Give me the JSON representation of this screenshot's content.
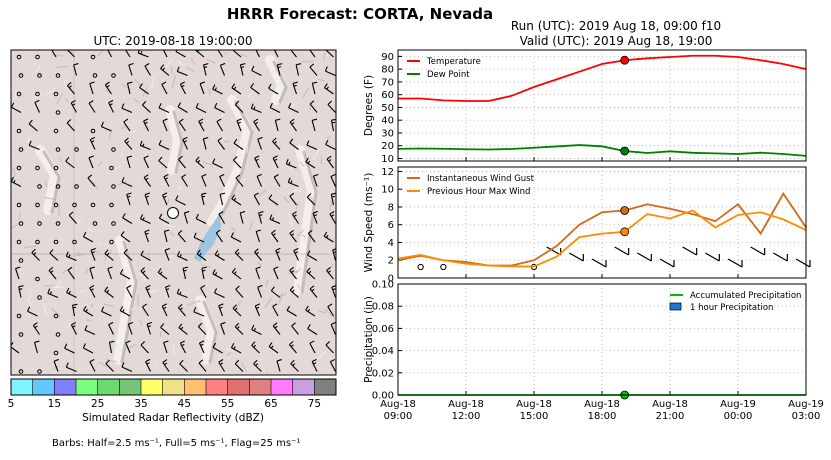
{
  "figure": {
    "suptitle": "HRRR Forecast: CORTA, Nevada",
    "run_title": "Run (UTC): 2019 Aug 18, 09:00 f10",
    "valid_title": "Valid (UTC): 2019 Aug 18, 19:00",
    "barb_note": "Barbs: Half=2.5 ms⁻¹, Full=5 ms⁻¹, Flag=25 ms⁻¹"
  },
  "map": {
    "title": "UTC: 2019-08-18 19:00:00",
    "colorbar_label": "Simulated Radar Reflectivity (dBZ)",
    "colorbar_ticks": [
      "5",
      "15",
      "25",
      "35",
      "45",
      "55",
      "65",
      "75"
    ],
    "colorbar_colors": [
      "#7ff5ff",
      "#62c8ff",
      "#8080ff",
      "#7dff7d",
      "#6fd86f",
      "#76c476",
      "#ffff66",
      "#f0e08a",
      "#ffc070",
      "#ff8080",
      "#e07070",
      "#e08080",
      "#ff7aff",
      "#c8a0e0",
      "#808080"
    ],
    "station_marker": "station-icon"
  },
  "chart_data": [
    {
      "type": "line",
      "ylabel": "Degrees (F)",
      "ylim": [
        8,
        95
      ],
      "yticks": [
        "10",
        "20",
        "30",
        "40",
        "50",
        "60",
        "70",
        "80",
        "90"
      ],
      "grid": true,
      "legend": "top-left",
      "x": [
        9,
        10,
        11,
        12,
        13,
        14,
        15,
        16,
        17,
        18,
        19,
        20,
        21,
        22,
        23,
        24,
        25,
        26,
        27
      ],
      "series": [
        {
          "name": "Temperature",
          "color": "#ff0000",
          "values": [
            57,
            57,
            55.5,
            55,
            55,
            59,
            66,
            72,
            78,
            84,
            87,
            88.5,
            89.5,
            90.5,
            90.5,
            89.5,
            87,
            84,
            80
          ]
        },
        {
          "name": "Dew Point",
          "color": "#008000",
          "values": [
            17.5,
            17.8,
            17.6,
            17.2,
            17.0,
            17.4,
            18.4,
            19.4,
            20.5,
            19.5,
            15.8,
            14.3,
            15.6,
            14.4,
            14.0,
            13.5,
            14.5,
            13.5,
            12.0
          ]
        }
      ],
      "current_x": 19
    },
    {
      "type": "line",
      "ylabel": "Wind Speed (ms⁻¹)",
      "ylim": [
        0,
        12.5
      ],
      "yticks": [
        "0",
        "2",
        "4",
        "6",
        "8",
        "10",
        "12"
      ],
      "grid": true,
      "legend": "top-left",
      "x": [
        9,
        10,
        11,
        12,
        13,
        14,
        15,
        16,
        17,
        18,
        19,
        20,
        21,
        22,
        23,
        24,
        25,
        26,
        27
      ],
      "series": [
        {
          "name": "Instantaneous Wind Gust",
          "color": "#d2691e",
          "values": [
            2.0,
            2.5,
            2.0,
            1.8,
            1.4,
            1.4,
            2.0,
            3.6,
            6.0,
            7.4,
            7.6,
            8.3,
            7.8,
            7.2,
            6.4,
            8.3,
            5.0,
            9.5,
            5.7
          ]
        },
        {
          "name": "Previous Hour Max Wind",
          "color": "#ff8c00",
          "values": [
            2.2,
            2.6,
            2.0,
            1.6,
            1.4,
            1.3,
            1.3,
            2.4,
            4.6,
            5.0,
            5.2,
            7.2,
            6.7,
            7.6,
            5.7,
            7.1,
            7.4,
            6.6,
            5.4
          ]
        }
      ],
      "current_x": 19
    },
    {
      "type": "line",
      "ylabel": "Precipitation (in)",
      "xlabel": "",
      "ylim": [
        0,
        0.1
      ],
      "yticks": [
        "0.00",
        "0.02",
        "0.04",
        "0.06",
        "0.08",
        "0.10"
      ],
      "grid": true,
      "legend": "top-right",
      "x": [
        9,
        10,
        11,
        12,
        13,
        14,
        15,
        16,
        17,
        18,
        19,
        20,
        21,
        22,
        23,
        24,
        25,
        26,
        27
      ],
      "series": [
        {
          "name": "Accumulated Precipitation",
          "color": "#00c000",
          "values": [
            0,
            0,
            0,
            0,
            0,
            0,
            0,
            0,
            0,
            0,
            0,
            0,
            0,
            0,
            0,
            0,
            0,
            0,
            0
          ]
        },
        {
          "name": "1 hour Precipitation",
          "color": "#1e78d2",
          "style": "bar",
          "values": [
            0,
            0,
            0,
            0,
            0,
            0,
            0,
            0,
            0,
            0,
            0,
            0,
            0,
            0,
            0,
            0,
            0,
            0,
            0
          ]
        }
      ],
      "xticks": [
        {
          "x": 9,
          "l1": "Aug-18",
          "l2": "09:00"
        },
        {
          "x": 12,
          "l1": "Aug-18",
          "l2": "12:00"
        },
        {
          "x": 15,
          "l1": "Aug-18",
          "l2": "15:00"
        },
        {
          "x": 18,
          "l1": "Aug-18",
          "l2": "18:00"
        },
        {
          "x": 21,
          "l1": "Aug-18",
          "l2": "21:00"
        },
        {
          "x": 24,
          "l1": "Aug-19",
          "l2": "00:00"
        },
        {
          "x": 27,
          "l1": "Aug-19",
          "l2": "03:00"
        }
      ],
      "current_x": 19
    }
  ]
}
